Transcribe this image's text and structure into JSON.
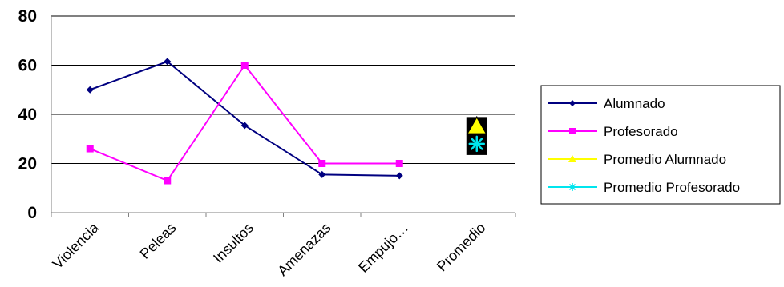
{
  "chart_data": {
    "type": "line",
    "categories": [
      "Violencia",
      "Peleas",
      "Insultos",
      "Amenazas",
      "Empujo…",
      "Promedio"
    ],
    "ylim": [
      0,
      80
    ],
    "yticks": [
      "0",
      "20",
      "40",
      "60",
      "80"
    ],
    "grid": true,
    "legend_position": "right",
    "series": [
      {
        "name": "Alumnado",
        "color": "#000080",
        "marker": "diamond",
        "values": [
          50,
          61.5,
          35.5,
          15.5,
          15,
          null
        ]
      },
      {
        "name": "Profesorado",
        "color": "#ff00ff",
        "marker": "square",
        "values": [
          26,
          13,
          60,
          20,
          20,
          null
        ]
      },
      {
        "name": "Promedio Alumnado",
        "color": "#ffff00",
        "marker": "triangle",
        "values": [
          null,
          null,
          null,
          null,
          null,
          35
        ]
      },
      {
        "name": "Promedio Profesorado",
        "color": "#00e5ee",
        "marker": "asterisk",
        "values": [
          null,
          null,
          null,
          null,
          null,
          28
        ]
      }
    ]
  }
}
